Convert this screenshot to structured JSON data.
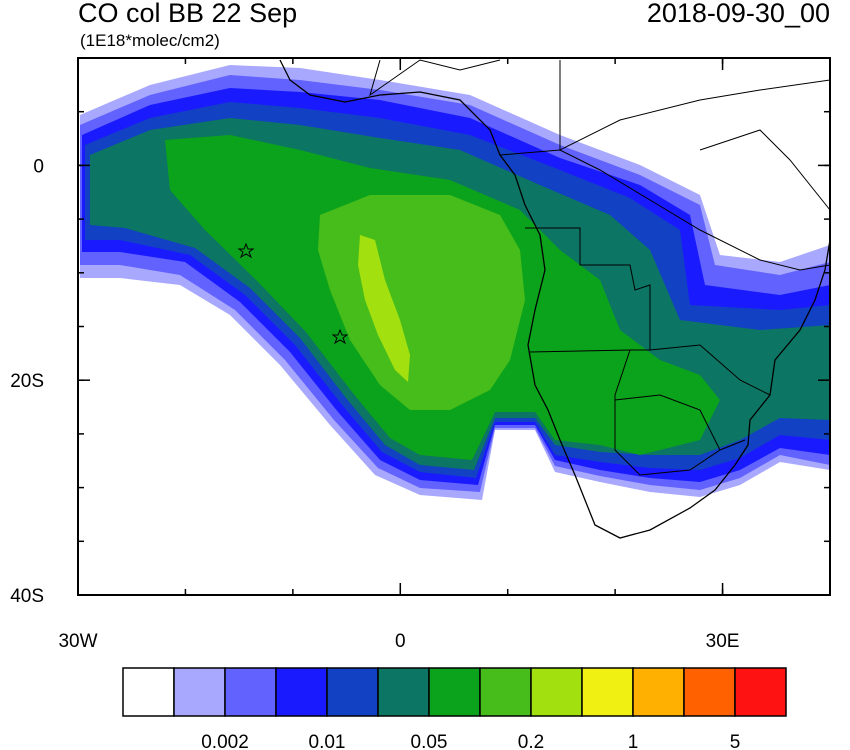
{
  "header": {
    "title": "CO col BB 22 Sep",
    "units": "(1E18*molec/cm2)",
    "date": "2018-09-30_00"
  },
  "map": {
    "lon_range": [
      -30,
      40
    ],
    "lat_range": [
      -40,
      10
    ],
    "lon_ticks": [
      {
        "value": -30,
        "label": "30W"
      },
      {
        "value": 0,
        "label": "0"
      },
      {
        "value": 30,
        "label": "30E"
      }
    ],
    "lat_ticks": [
      {
        "value": 0,
        "label": "0"
      },
      {
        "value": -20,
        "label": "20S"
      },
      {
        "value": -40,
        "label": "40S"
      }
    ],
    "lon_minor_step": 10,
    "lat_minor_step": 5
  },
  "colorbar": {
    "colors": [
      "#ffffff",
      "#a8a8ff",
      "#6262ff",
      "#1a1aff",
      "#1241c4",
      "#0c7563",
      "#0ca31c",
      "#46bd1a",
      "#a2e010",
      "#f0f012",
      "#ffb000",
      "#ff6000",
      "#ff1212"
    ],
    "labels": [
      0.002,
      0.01,
      0.05,
      0.2,
      1,
      5
    ]
  }
}
